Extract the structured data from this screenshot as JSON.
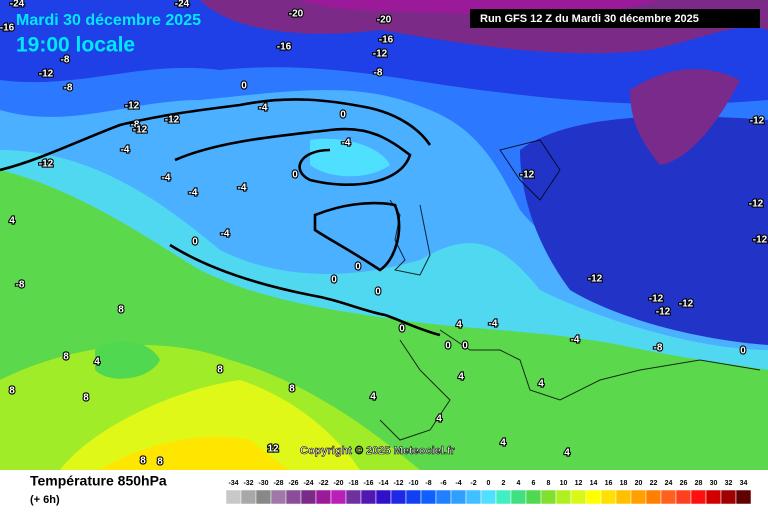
{
  "header": {
    "date": "Mardi 30 décembre 2025",
    "time": "19:00 locale",
    "run": "Run GFS 12 Z du Mardi 30 décembre 2025"
  },
  "footer": {
    "copyright": "Copyright © 2025 Meteociel.fr",
    "title": "Température 850hPa",
    "step": "(+ 6h)"
  },
  "legend": {
    "ticks": [
      -34,
      -32,
      -30,
      -28,
      -26,
      -24,
      -22,
      -20,
      -18,
      -16,
      -14,
      -12,
      -10,
      -8,
      -6,
      -4,
      -2,
      0,
      2,
      4,
      6,
      8,
      10,
      12,
      14,
      16,
      18,
      20,
      22,
      24,
      26,
      28,
      30,
      32,
      34
    ],
    "colors": [
      "#c8c8c8",
      "#a8a8a8",
      "#888888",
      "#a078a8",
      "#8c4c98",
      "#7c2a88",
      "#9a1a9a",
      "#b820b8",
      "#7030a0",
      "#5018b0",
      "#3010c8",
      "#1e28e6",
      "#1040f0",
      "#1060ff",
      "#2080ff",
      "#30a0ff",
      "#40c0ff",
      "#50e0ff",
      "#40f0c0",
      "#40e080",
      "#50d850",
      "#80e030",
      "#b0f020",
      "#d8f818",
      "#ffff00",
      "#ffe000",
      "#ffc000",
      "#ffa000",
      "#ff8000",
      "#ff6020",
      "#ff4020",
      "#ff1010",
      "#d00000",
      "#a00000",
      "#600000"
    ]
  },
  "map": {
    "contour_labels": [
      -24,
      -24,
      -20,
      -20,
      -16,
      -8,
      -16,
      -16,
      -12,
      -8,
      -12,
      -8,
      0,
      -12,
      -12,
      -8,
      -12,
      -4,
      0,
      -4,
      -4,
      -4,
      0,
      -12,
      -4,
      0,
      0,
      0,
      0,
      0,
      -12,
      -12,
      -12,
      -12,
      -12,
      -12,
      -12,
      -4,
      -4,
      -8,
      0,
      4,
      0,
      0,
      4,
      4,
      4,
      4,
      4,
      4,
      8,
      8,
      4,
      8,
      8,
      8,
      12,
      8,
      8,
      4,
      -8,
      8,
      -4,
      -4,
      -12
    ]
  }
}
